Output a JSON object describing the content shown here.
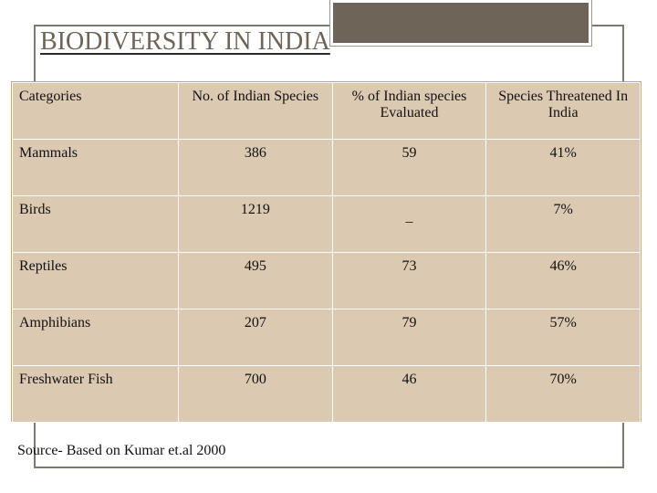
{
  "slide": {
    "title": "BIODIVERSITY IN INDIA",
    "source": "Source- Based on Kumar et.al 2000"
  },
  "table": {
    "headers": [
      "Categories",
      "No. of  Indian Species",
      "% of Indian species Evaluated",
      "Species Threatened In India"
    ],
    "rows": [
      {
        "category": "Mammals",
        "species": "386",
        "evaluated": "59",
        "threatened": "41%"
      },
      {
        "category": "Birds",
        "species": "1219",
        "evaluated": "_",
        "threatened": "7%"
      },
      {
        "category": "Reptiles",
        "species": "495",
        "evaluated": "73",
        "threatened": "46%"
      },
      {
        "category": "Amphibians",
        "species": "207",
        "evaluated": "79",
        "threatened": "57%"
      },
      {
        "category": "Freshwater Fish",
        "species": "700",
        "evaluated": "46",
        "threatened": "70%"
      }
    ]
  },
  "colors": {
    "title": "#6e6558",
    "table_fill": "#dcc9b2",
    "accent_box": "#6e6558"
  }
}
